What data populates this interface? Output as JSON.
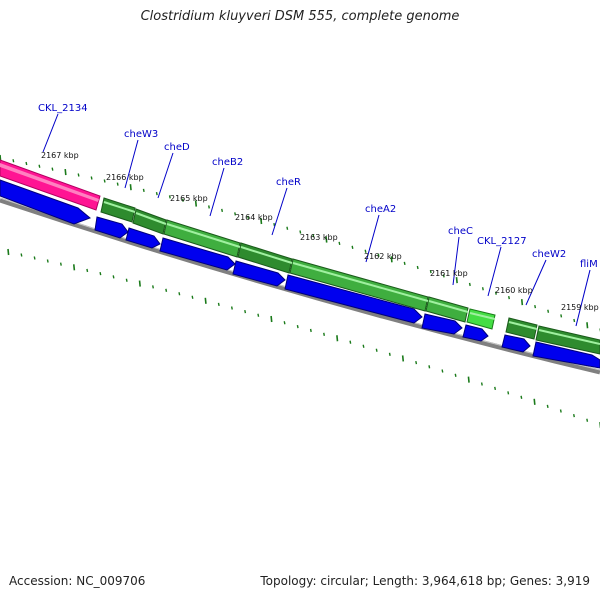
{
  "header": {
    "title": "Clostridium kluyveri DSM 555, complete genome"
  },
  "footer": {
    "accession": "Accession: NC_009706",
    "stats": "Topology: circular; Length: 3,964,618 bp; Genes: 3,919"
  },
  "colors": {
    "gene_label": "#0000c8",
    "cds_arrow": "#0000ee",
    "gene_bar": "#2e8b2e",
    "gene_bar_light": "#44dd44",
    "rrna_bar": "#ff1493",
    "backbone": "#808080",
    "tick": "#1a7a1a"
  },
  "map": {
    "kbp_labels": [
      "2167 kbp",
      "2166 kbp",
      "2165 kbp",
      "2164 kbp",
      "2163 kbp",
      "2162 kbp",
      "2161 kbp",
      "2160 kbp",
      "2159 kbp"
    ],
    "genes": [
      "CKL_2134",
      "cheW3",
      "cheD",
      "cheB2",
      "cheR",
      "cheA2",
      "cheC",
      "CKL_2127",
      "cheW2",
      "fliM"
    ]
  }
}
